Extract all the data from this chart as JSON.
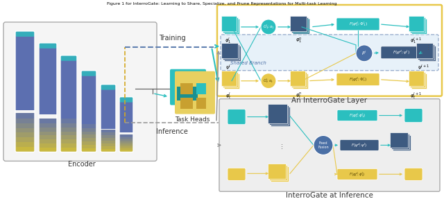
{
  "colors": {
    "teal": "#2BBFBF",
    "dark_blue": "#3D5A80",
    "gold": "#E8C84A",
    "blue_mid": "#4A6FA5",
    "arrow_teal": "#2BBFBF",
    "box_border_teal": "#2BBFBF",
    "box_border_gold": "#E8C84A",
    "dashed_blue": "#6080B0",
    "shared_bg": "#D8E8F5",
    "inference_bg": "#E8E8E8",
    "enc_top": "#5C6FB0",
    "enc_bot": "#C8B840",
    "training_dash": "#D4A820",
    "inference_dash": "#999999"
  },
  "title_top": "Figure 1 for InterroGate: Learning to Share, Specialize, and Prune Representations for Multi-task Learning",
  "label_encoder": "Encoder",
  "label_task_heads": "Task Heads",
  "label_training": "Training",
  "label_inference": "Inference",
  "label_interrogate_layer": "An InterroGate Layer",
  "label_interrogate_inference": "InterroGate at Inference",
  "label_shared_branch": "Shared Branch"
}
